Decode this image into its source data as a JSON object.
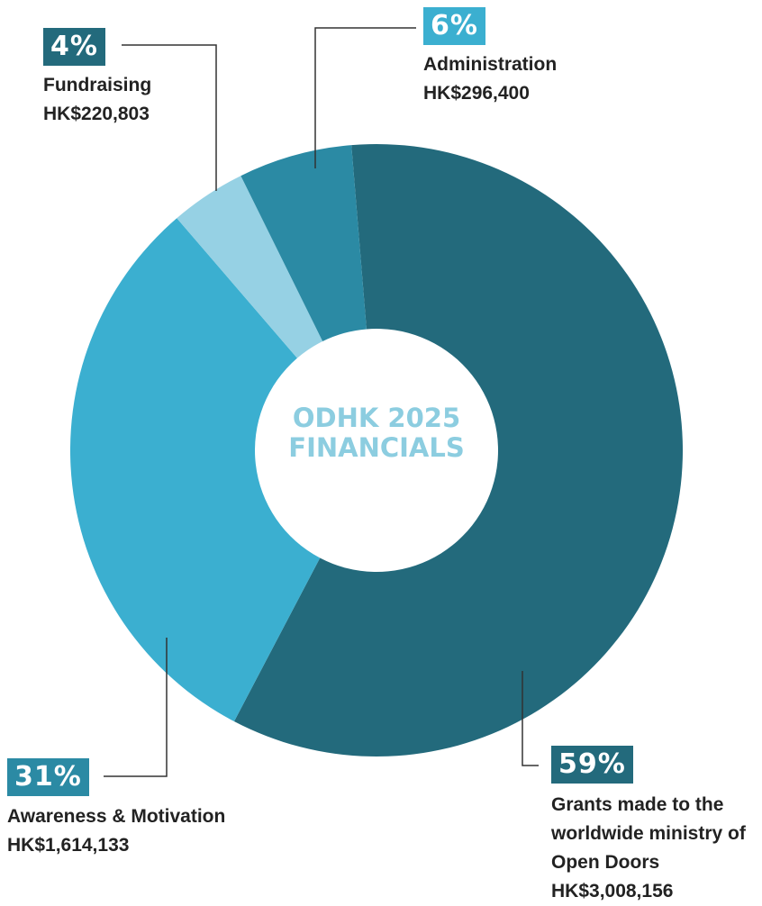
{
  "chart_data": {
    "type": "donut",
    "title": "ODHK 2025 FINANCIALS",
    "categories": [
      "Grants made to the worldwide ministry of Open Doors",
      "Awareness & Motivation",
      "Fundraising",
      "Administration"
    ],
    "values": [
      59,
      31,
      4,
      6
    ],
    "value_labels": [
      "59%",
      "31%",
      "4%",
      "6%"
    ],
    "amounts": [
      "HK$3,008,156",
      "HK$1,614,133",
      "HK$220,803",
      "HK$296,400"
    ],
    "colors": [
      "#236a7c",
      "#3bafd0",
      "#96d1e4",
      "#2b8aa4"
    ],
    "label_colors": [
      "#236a7c",
      "#2b8aa4",
      "#236a7c",
      "#3bafd0"
    ]
  }
}
